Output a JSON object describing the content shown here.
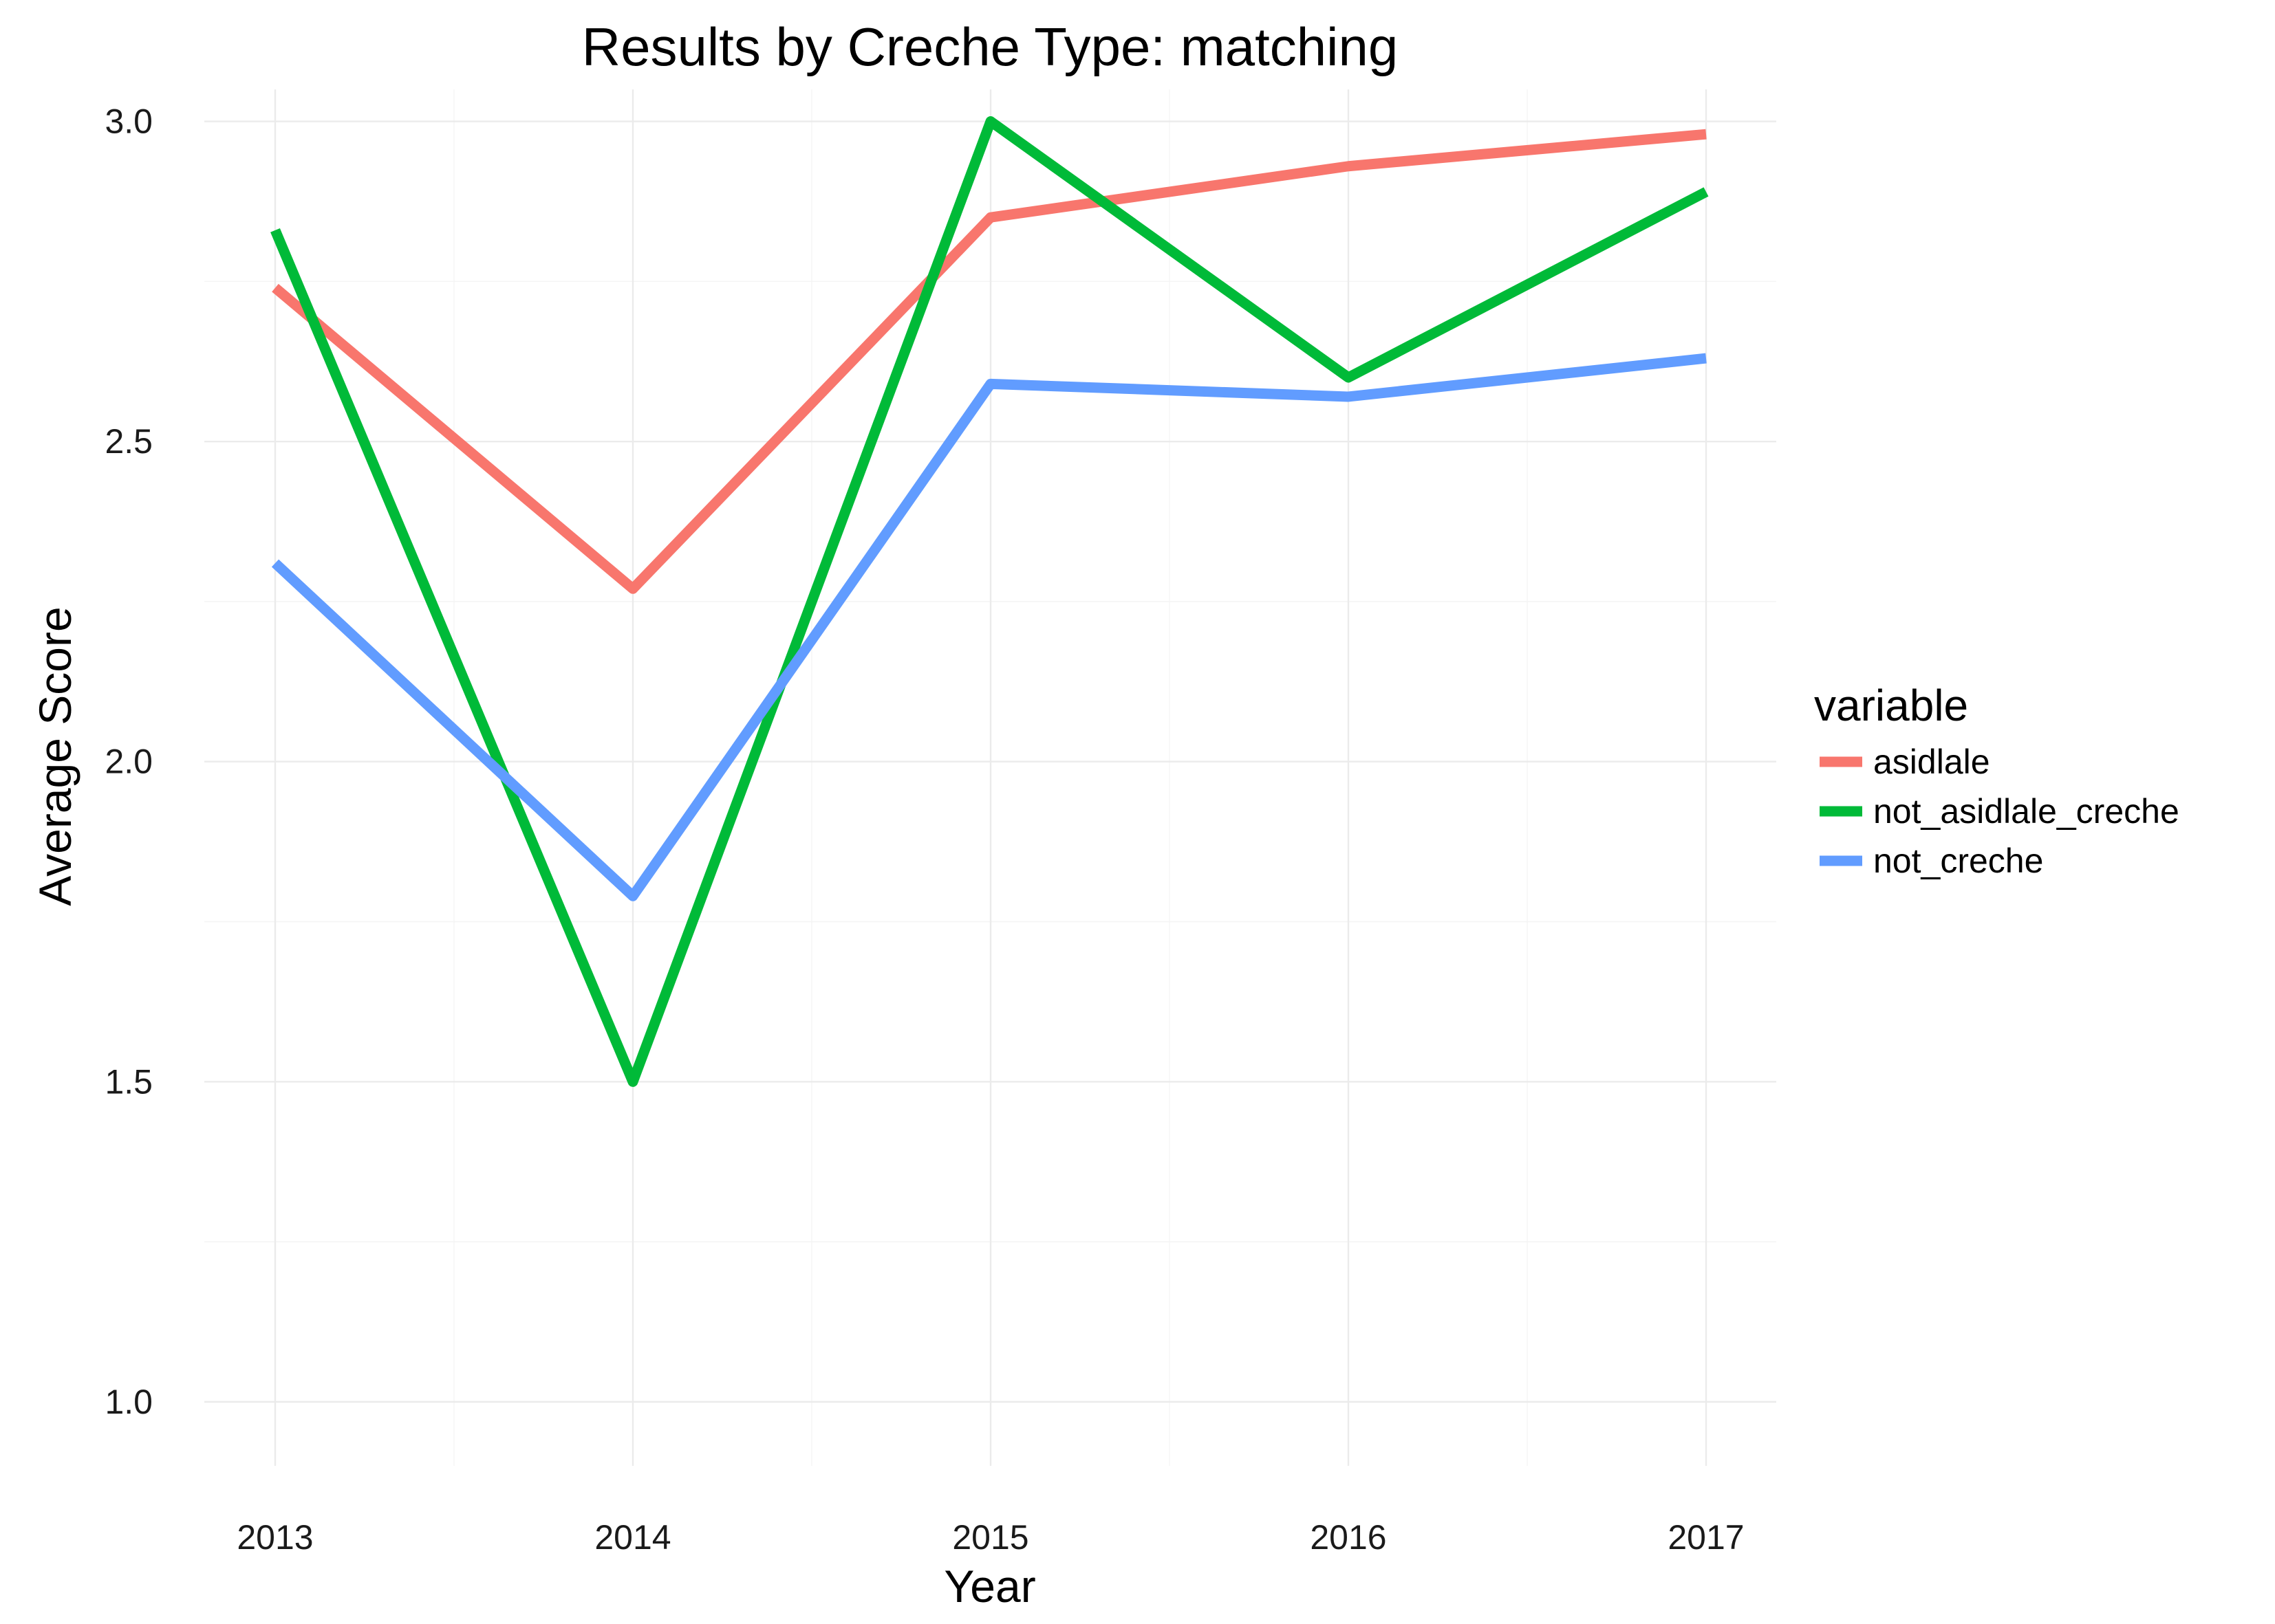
{
  "chart_data": {
    "type": "line",
    "title": "Results by Creche Type: matching",
    "xlabel": "Year",
    "ylabel": "Average Score",
    "x": [
      2013,
      2014,
      2015,
      2016,
      2017
    ],
    "xticks": [
      "2013",
      "2014",
      "2015",
      "2016",
      "2017"
    ],
    "yticks": [
      "1.0",
      "1.5",
      "2.0",
      "2.5",
      "3.0"
    ],
    "ylim": [
      0.9,
      3.05
    ],
    "grid": true,
    "legend": {
      "title": "variable",
      "position": "right"
    },
    "series": [
      {
        "name": "asidlale",
        "color": "#f8766d",
        "values": [
          2.74,
          2.27,
          2.85,
          2.93,
          2.98
        ]
      },
      {
        "name": "not_asidlale_creche",
        "color": "#00ba38",
        "values": [
          2.83,
          1.5,
          3.0,
          2.6,
          2.89
        ]
      },
      {
        "name": "not_creche",
        "color": "#619cff",
        "values": [
          2.31,
          1.79,
          2.59,
          2.57,
          2.63
        ]
      }
    ]
  }
}
